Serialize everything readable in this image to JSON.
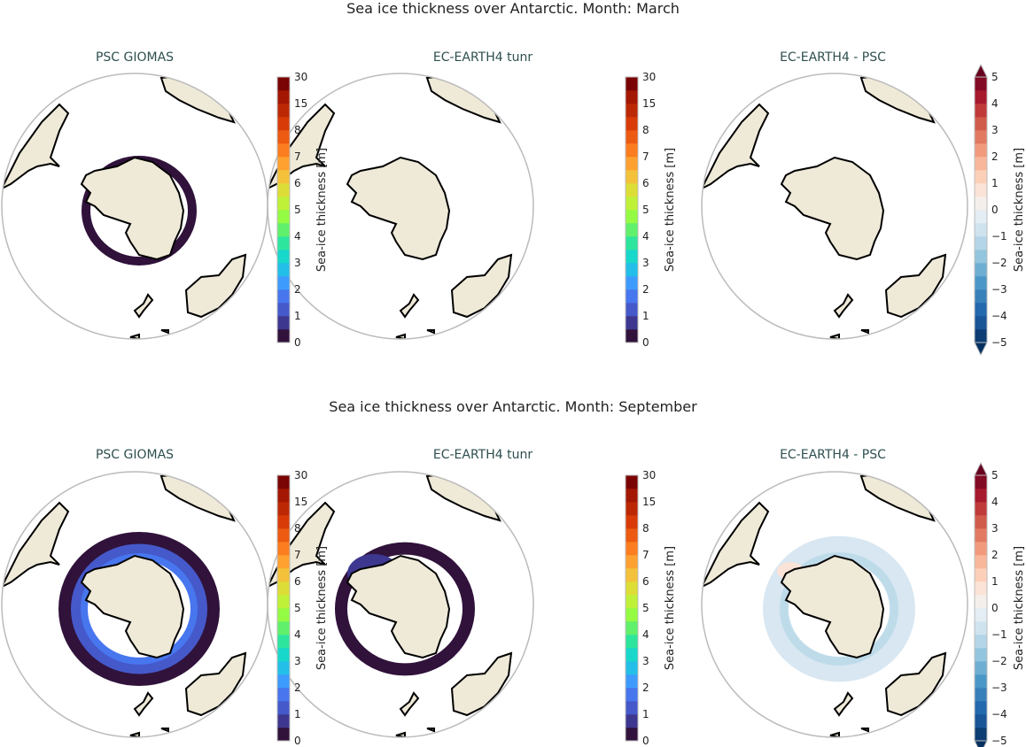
{
  "rows": [
    {
      "title": "Sea ice thickness over Antarctic. Month: March",
      "month": "March",
      "panels": [
        {
          "title": "PSC GIOMAS",
          "field": "model",
          "ice": "march_giomas"
        },
        {
          "title": "EC-EARTH4 tunr",
          "field": "model",
          "ice": "march_ec"
        },
        {
          "title": "EC-EARTH4 -  PSC",
          "field": "diff",
          "ice": "march_diff"
        }
      ]
    },
    {
      "title": "Sea ice thickness over Antarctic. Month: September",
      "month": "September",
      "panels": [
        {
          "title": "PSC GIOMAS",
          "field": "model",
          "ice": "sep_giomas"
        },
        {
          "title": "EC-EARTH4 tunr",
          "field": "model",
          "ice": "sep_ec"
        },
        {
          "title": "EC-EARTH4 -  PSC",
          "field": "diff",
          "ice": "sep_diff"
        }
      ]
    }
  ],
  "colorbars": {
    "thickness": {
      "label": "Sea-ice thickness [m]",
      "ticks": [
        "0",
        "1",
        "2",
        "3",
        "4",
        "5",
        "6",
        "7",
        "8",
        "15",
        "30"
      ],
      "colormap": "turbo",
      "colors": [
        "#30123b",
        "#3e378f",
        "#4559cb",
        "#4776ee",
        "#3e9bfe",
        "#23bfe9",
        "#18d7cb",
        "#2ee59e",
        "#61f06b",
        "#94fb43",
        "#bff138",
        "#dddd37",
        "#f4c23a",
        "#fea130",
        "#fb7d1f",
        "#ed5a11",
        "#d83b07",
        "#bc2803",
        "#a41702",
        "#7a0403"
      ]
    },
    "difference": {
      "label": "Sea-ice thickness [m]",
      "ticks": [
        "−5",
        "−4",
        "−3",
        "−2",
        "−1",
        "0",
        "1",
        "2",
        "3",
        "4",
        "5"
      ],
      "colormap": "RdBu_r",
      "extend": "both",
      "colors": [
        "#0c3d73",
        "#1a5598",
        "#2468ad",
        "#3880ba",
        "#4b98c8",
        "#6eaed3",
        "#93c5de",
        "#b3d5e7",
        "#cfe3ef",
        "#e3edf3",
        "#f4efeb",
        "#fbe3d7",
        "#fcd0b8",
        "#f8b79a",
        "#f19b7c",
        "#e27a61",
        "#d15b4b",
        "#c03a3a",
        "#a71a2e",
        "#830a24"
      ],
      "under": "#053061",
      "over": "#67001f"
    }
  },
  "colors": {
    "land": "#efe9d8",
    "coast": "#000000",
    "frame": "#bbbbbb"
  }
}
